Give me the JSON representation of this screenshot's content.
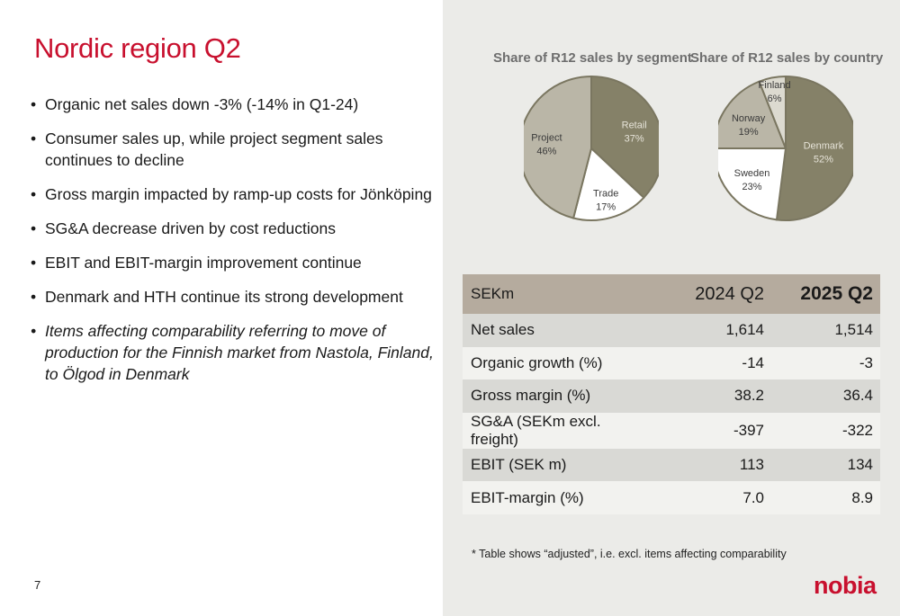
{
  "title": "Nordic region Q2",
  "bullets": [
    "Organic net sales down -3% (-14% in Q1-24)",
    "Consumer sales up, while project segment sales continues to decline",
    "Gross margin impacted by ramp-up costs for Jönköping",
    "SG&A decrease driven by cost reductions",
    "EBIT and EBIT-margin improvement continue",
    "Denmark and HTH continue its strong development",
    "Items affecting comparability referring to move of production for the Finnish market from Nastola, Finland, to Ölgod in Denmark"
  ],
  "page_number": "7",
  "chart_data": [
    {
      "type": "pie",
      "title": "Share of R12 sales by segment",
      "slices": [
        {
          "label": "Retail",
          "value": 37,
          "value_label": "37%",
          "color": "#858168"
        },
        {
          "label": "Trade",
          "value": 17,
          "value_label": "17%",
          "color": "#ffffff"
        },
        {
          "label": "Project",
          "value": 46,
          "value_label": "46%",
          "color": "#bab6a7"
        }
      ]
    },
    {
      "type": "pie",
      "title": "Share of R12 sales by country",
      "slices": [
        {
          "label": "Denmark",
          "value": 52,
          "value_label": "52%",
          "color": "#858168"
        },
        {
          "label": "Sweden",
          "value": 23,
          "value_label": "23%",
          "color": "#ffffff"
        },
        {
          "label": "Norway",
          "value": 19,
          "value_label": "19%",
          "color": "#bab6a7"
        },
        {
          "label": "Finland",
          "value": 6,
          "value_label": "6%",
          "color": "#dcdad0"
        }
      ]
    },
    {
      "type": "table",
      "header": [
        "SEKm",
        "2024 Q2",
        "2025 Q2"
      ],
      "rows": [
        [
          "Net sales",
          "1,614",
          "1,514"
        ],
        [
          "Organic growth (%)",
          "-14",
          "-3"
        ],
        [
          "Gross margin (%)",
          "38.2",
          "36.4"
        ],
        [
          "SG&A (SEKm excl. freight)",
          "-397",
          "-322"
        ],
        [
          "EBIT (SEK m)",
          "113",
          "134"
        ],
        [
          "EBIT-margin (%)",
          "7.0",
          "8.9"
        ]
      ]
    }
  ],
  "footnote": "* Table shows “adjusted”, i.e. excl. items affecting comparability",
  "logo": "nobia",
  "colors": {
    "accent": "#c8102e",
    "panel_bg": "#ebebe8",
    "pie_dark": "#858168",
    "pie_light": "#bab6a7",
    "pie_outline": "#7a7660"
  }
}
